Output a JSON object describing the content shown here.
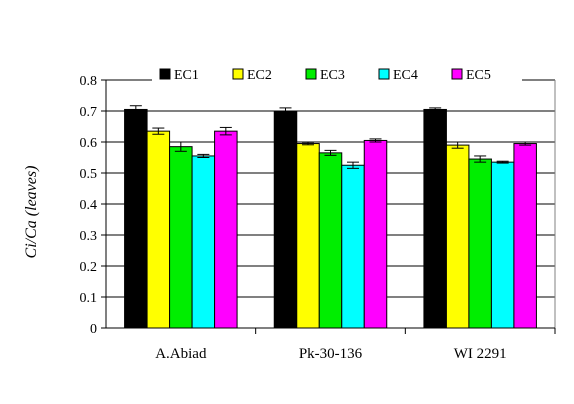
{
  "chart_data": {
    "type": "bar",
    "title": "",
    "xlabel": "",
    "ylabel": "Ci/Ca (leaves)",
    "ylim": [
      0,
      0.8
    ],
    "yticks": [
      "0",
      "0.1",
      "0.2",
      "0.3",
      "0.4",
      "0.5",
      "0.6",
      "0.7",
      "0.8"
    ],
    "grid": "horizontal",
    "legend_position": "top",
    "categories": [
      "A.Abiad",
      "Pk-30-136",
      "WI 2291"
    ],
    "series": [
      {
        "name": "EC1",
        "color": "#000000",
        "values": [
          0.705,
          0.7,
          0.705
        ],
        "errors": [
          0.012,
          0.01,
          0.005
        ]
      },
      {
        "name": "EC2",
        "color": "#ffff00",
        "values": [
          0.635,
          0.595,
          0.59
        ],
        "errors": [
          0.01,
          0.004,
          0.01
        ]
      },
      {
        "name": "EC3",
        "color": "#00ee00",
        "values": [
          0.585,
          0.565,
          0.545
        ],
        "errors": [
          0.015,
          0.008,
          0.01
        ]
      },
      {
        "name": "EC4",
        "color": "#00ffff",
        "values": [
          0.555,
          0.525,
          0.535
        ],
        "errors": [
          0.005,
          0.01,
          0.003
        ]
      },
      {
        "name": "EC5",
        "color": "#ff00ff",
        "values": [
          0.635,
          0.605,
          0.595
        ],
        "errors": [
          0.012,
          0.005,
          0.005
        ]
      }
    ]
  }
}
